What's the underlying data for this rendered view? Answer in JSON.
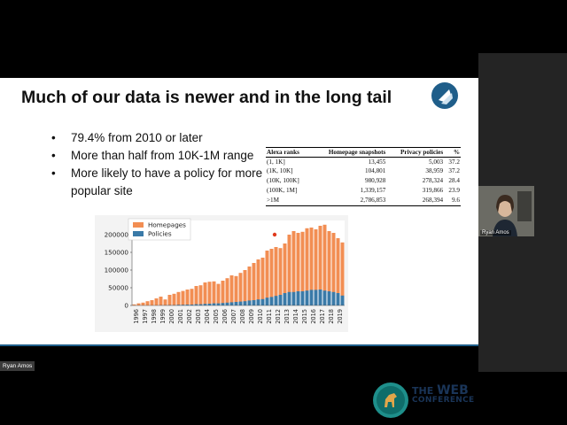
{
  "slide": {
    "title": "Much of our data is newer and in the long tail",
    "bullets": [
      "79.4% from 2010 or later",
      "More than half from 10K-1M range",
      "More likely to have a policy for more popular site"
    ],
    "bullet_char": "•",
    "table": {
      "headers": [
        "Alexa ranks",
        "Homepage snapshots",
        "Privacy policies",
        "%"
      ],
      "rows": [
        [
          "(1, 1K]",
          "13,455",
          "5,003",
          "37.2"
        ],
        [
          "(1K, 10K]",
          "104,801",
          "38,959",
          "37.2"
        ],
        [
          "(10K, 100K]",
          "980,928",
          "278,324",
          "28.4"
        ],
        [
          "(100K, 1M]",
          "1,339,157",
          "319,866",
          "23.9"
        ],
        [
          ">1M",
          "2,786,853",
          "268,394",
          "9.6"
        ]
      ]
    },
    "logo_icon": "bird-logo-icon",
    "conference": {
      "line1_prefix": "THE",
      "line1_main": "WEB",
      "line2": "CONFERENCE",
      "icon": "horse-logo-icon"
    }
  },
  "chart_data": {
    "type": "bar",
    "categories": [
      "1996",
      "1997",
      "1998",
      "1999",
      "2000",
      "2001",
      "2002",
      "2003",
      "2004",
      "2005",
      "2006",
      "2007",
      "2008",
      "2009",
      "2010",
      "2011",
      "2012",
      "2013",
      "2014",
      "2015",
      "2016",
      "2017",
      "2018",
      "2019"
    ],
    "series": [
      {
        "name": "Homepages",
        "color": "#f28e53",
        "values": [
          [
            3000,
            6000
          ],
          [
            8000,
            12000
          ],
          [
            15000,
            20000
          ],
          [
            25000,
            17000
          ],
          [
            30000,
            33000
          ],
          [
            38000,
            41000
          ],
          [
            45000,
            47000
          ],
          [
            55000,
            57000
          ],
          [
            65000,
            67000
          ],
          [
            68000,
            61000
          ],
          [
            70000,
            77000
          ],
          [
            85000,
            83000
          ],
          [
            92000,
            100000
          ],
          [
            110000,
            120000
          ],
          [
            130000,
            135000
          ],
          [
            155000,
            160000
          ],
          [
            165000,
            162000
          ],
          [
            175000,
            200000
          ],
          [
            210000,
            205000
          ],
          [
            208000,
            218000
          ],
          [
            220000,
            215000
          ],
          [
            225000,
            228000
          ],
          [
            210000,
            205000
          ],
          [
            190000,
            178000
          ]
        ]
      },
      {
        "name": "Policies",
        "color": "#3a7aa8",
        "values": [
          [
            0,
            0
          ],
          [
            0,
            0
          ],
          [
            0,
            0
          ],
          [
            500,
            500
          ],
          [
            1000,
            1000
          ],
          [
            2000,
            2000
          ],
          [
            2500,
            2500
          ],
          [
            3500,
            3500
          ],
          [
            4500,
            5000
          ],
          [
            6000,
            6000
          ],
          [
            7000,
            8000
          ],
          [
            9000,
            10000
          ],
          [
            11000,
            12000
          ],
          [
            14000,
            15000
          ],
          [
            17000,
            18000
          ],
          [
            22000,
            24000
          ],
          [
            27000,
            30000
          ],
          [
            35000,
            38000
          ],
          [
            38000,
            40000
          ],
          [
            40000,
            42000
          ],
          [
            44000,
            44000
          ],
          [
            45000,
            42000
          ],
          [
            40000,
            38000
          ],
          [
            35000,
            28000
          ]
        ]
      }
    ],
    "bars_per_category": 2,
    "ylim": [
      0,
      240000
    ],
    "yticks": [
      0,
      50000,
      100000,
      150000,
      200000
    ],
    "legend": "top-left",
    "grid": false,
    "annotation": {
      "label": "",
      "category_index": 16,
      "value": 200000,
      "color": "#e03b1e"
    }
  },
  "video": {
    "participant_name": "Ryan Amos",
    "speaker_tag": "Ryan Amos",
    "bg_color": "#6b6b64"
  }
}
